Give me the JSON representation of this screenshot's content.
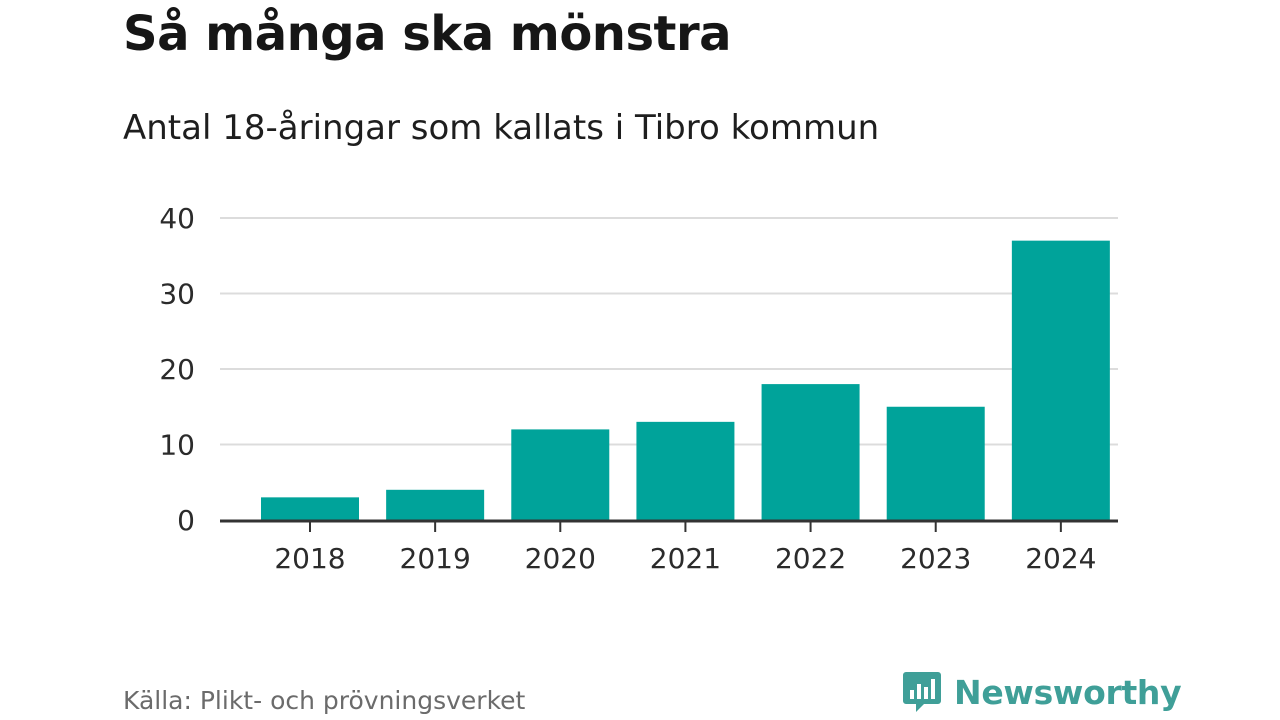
{
  "header": {
    "title": "Så många ska mönstra",
    "subtitle": "Antal 18-åringar som kallats i Tibro kommun"
  },
  "footer": {
    "source": "Källa: Plikt- och prövningsverket",
    "brand": "Newsworthy",
    "brand_icon": "newsworthy-chart-bubble-icon"
  },
  "colors": {
    "bar": "#00a39a",
    "grid": "#dcdcdc",
    "axis": "#333333",
    "brand": "#3f9f98"
  },
  "chart_data": {
    "type": "bar",
    "categories": [
      "2018",
      "2019",
      "2020",
      "2021",
      "2022",
      "2023",
      "2024"
    ],
    "values": [
      3,
      4,
      12,
      13,
      18,
      15,
      37
    ],
    "title": "Så många ska mönstra",
    "subtitle": "Antal 18-åringar som kallats i Tibro kommun",
    "xlabel": "",
    "ylabel": "",
    "ylim": [
      0,
      40
    ],
    "yticks": [
      0,
      10,
      20,
      30,
      40
    ],
    "grid": true,
    "legend": "none"
  }
}
